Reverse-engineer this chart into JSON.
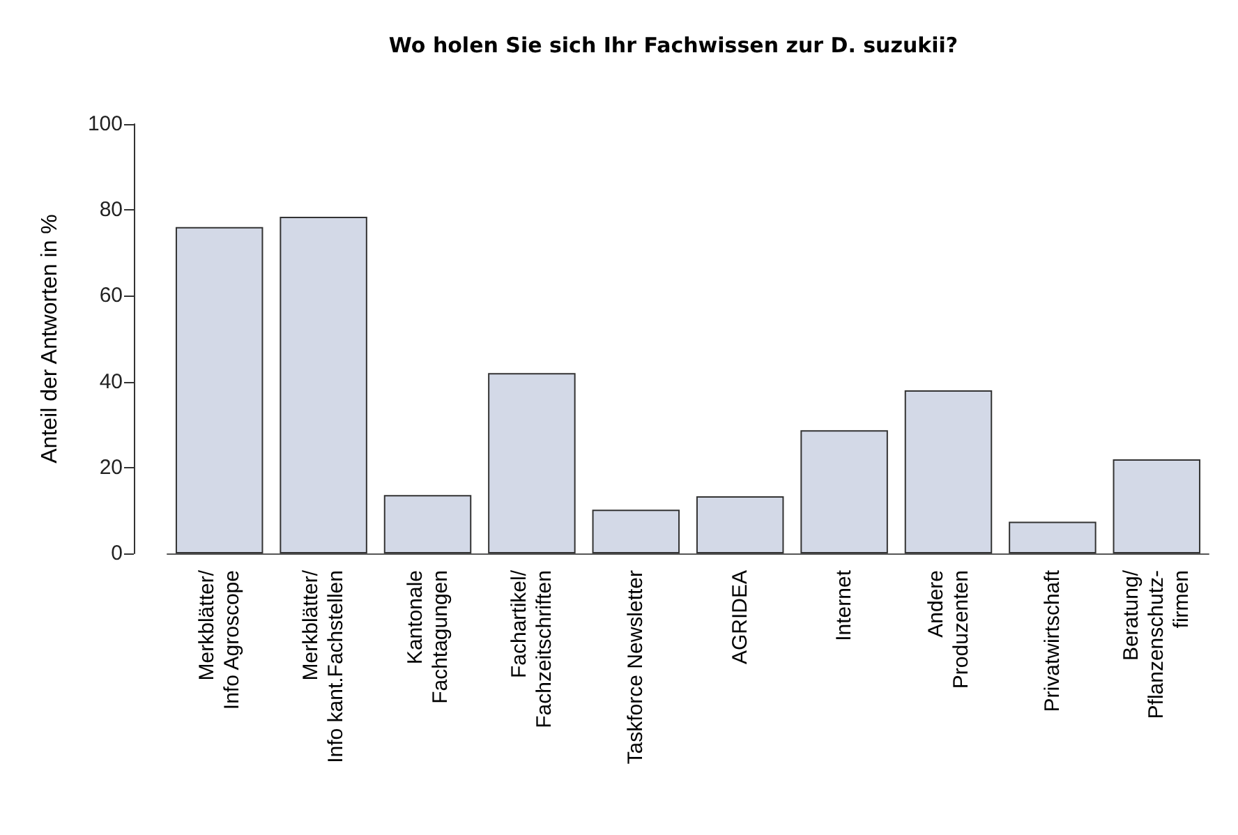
{
  "chart_data": {
    "type": "bar",
    "title": "Wo holen Sie sich Ihr Fachwissen zur D. suzukii?",
    "ylabel": "Anteil der Antworten in %",
    "categories": [
      "Merkblätter/\nInfo Agroscope",
      "Merkblätter/\nInfo kant.Fachstellen",
      "Kantonale\nFachtagungen",
      "Fachartikel/\nFachzeitschriften",
      "Taskforce Newsletter",
      "AGRIDEA",
      "Internet",
      "Andere\nProduzenten",
      "Privatwirtschaft",
      "Beratung/\nPflanzenschutz-\nfirmen"
    ],
    "values": [
      76,
      78.4,
      13.6,
      42,
      10.2,
      13.3,
      28.7,
      38,
      7.4,
      21.9
    ],
    "color": "#d3d9e7",
    "ylim": [
      0,
      100
    ],
    "yticks": [
      0,
      20,
      40,
      60,
      80,
      100
    ],
    "grid": false
  }
}
